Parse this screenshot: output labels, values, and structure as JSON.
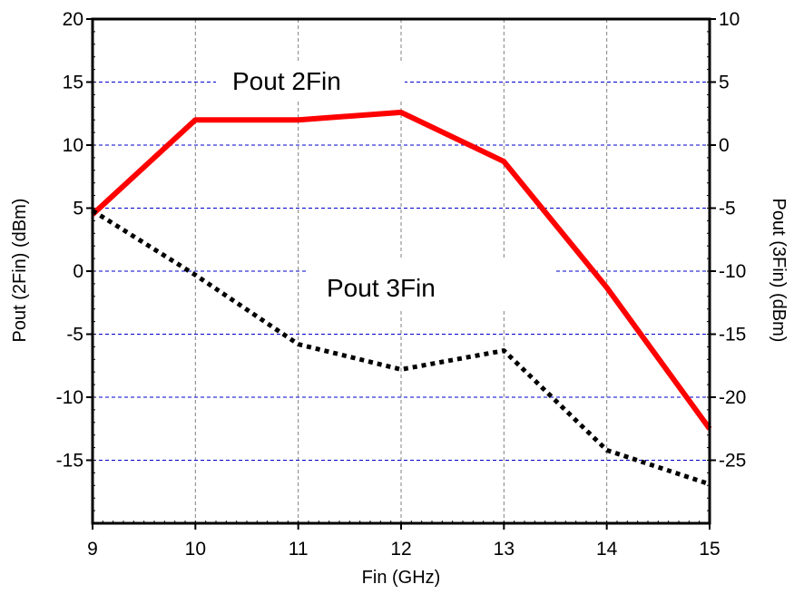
{
  "chart_data": {
    "type": "line",
    "xlabel": "Fin (GHz)",
    "ylabel_left": "Pout (2Fin) (dBm)",
    "ylabel_right": "Pout (3Fin) (dBm)",
    "xlim": [
      9,
      15
    ],
    "ylim_left": [
      -20,
      20
    ],
    "ylim_right": [
      -30,
      10
    ],
    "x_ticks": [
      9,
      10,
      11,
      12,
      13,
      14,
      15
    ],
    "y_ticks_left": [
      20,
      15,
      10,
      5,
      0,
      -5,
      -10,
      -15
    ],
    "y_ticks_right": [
      10,
      5,
      0,
      -5,
      -10,
      -15,
      -20,
      -25
    ],
    "grid": true,
    "series": [
      {
        "name": "Pout 2Fin",
        "axis": "left",
        "color": "#ff0000",
        "style": "solid",
        "x": [
          9,
          10,
          11,
          12,
          13,
          14,
          15
        ],
        "y": [
          4.5,
          12.0,
          12.0,
          12.6,
          8.7,
          -1.3,
          -12.5
        ]
      },
      {
        "name": "Pout 3Fin",
        "axis": "right",
        "color": "#000000",
        "style": "dotted",
        "x": [
          9,
          10,
          11,
          12,
          13,
          14,
          15
        ],
        "y": [
          -5.2,
          -10.3,
          -15.8,
          -17.8,
          -16.3,
          -24.2,
          -26.9
        ]
      }
    ]
  }
}
